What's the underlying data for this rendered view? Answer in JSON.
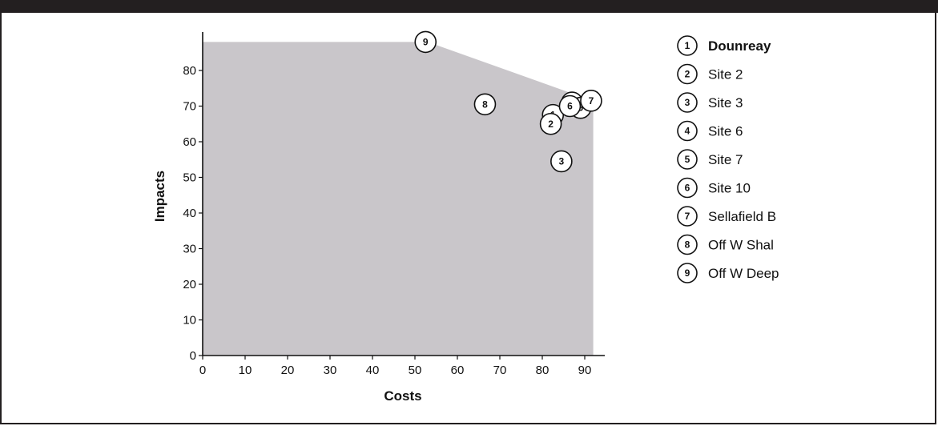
{
  "chart_data": {
    "type": "scatter",
    "xlabel": "Costs",
    "ylabel": "Impacts",
    "xlim": [
      0,
      95
    ],
    "ylim": [
      0,
      90
    ],
    "x_ticks": [
      "0",
      "10",
      "20",
      "30",
      "40",
      "50",
      "60",
      "70",
      "80",
      "90"
    ],
    "y_ticks": [
      "0",
      "10",
      "20",
      "30",
      "40",
      "50",
      "60",
      "70",
      "80"
    ],
    "grid": false,
    "legend_position": "right",
    "area_fill_color": "#c9c6ca",
    "feasible_region": [
      [
        0,
        0
      ],
      [
        0,
        88
      ],
      [
        53,
        88
      ],
      [
        86,
        74
      ],
      [
        92,
        72
      ],
      [
        92,
        0
      ]
    ],
    "points": [
      {
        "label": "1",
        "name": "Dounreay",
        "x": 82.5,
        "y": 67.5
      },
      {
        "label": "2",
        "name": "Site 2",
        "x": 82,
        "y": 65
      },
      {
        "label": "3",
        "name": "Site 3",
        "x": 84.5,
        "y": 54.5
      },
      {
        "label": "4",
        "name": "Site 6",
        "x": 87,
        "y": 71
      },
      {
        "label": "5",
        "name": "Site 7",
        "x": 89,
        "y": 69.5
      },
      {
        "label": "6",
        "name": "Site 10",
        "x": 86.5,
        "y": 70
      },
      {
        "label": "7",
        "name": "Sellafield B",
        "x": 91.5,
        "y": 71.5
      },
      {
        "label": "8",
        "name": "Off W Shal",
        "x": 66.5,
        "y": 70.5
      },
      {
        "label": "9",
        "name": "Off W Deep",
        "x": 52.5,
        "y": 88
      }
    ],
    "legend": [
      {
        "label": "1",
        "name": "Dounreay",
        "bold": true
      },
      {
        "label": "2",
        "name": "Site 2"
      },
      {
        "label": "3",
        "name": "Site 3"
      },
      {
        "label": "4",
        "name": "Site 6"
      },
      {
        "label": "5",
        "name": "Site 7"
      },
      {
        "label": "6",
        "name": "Site 10"
      },
      {
        "label": "7",
        "name": "Sellafield B"
      },
      {
        "label": "8",
        "name": "Off W Shal"
      },
      {
        "label": "9",
        "name": "Off W Deep"
      }
    ]
  }
}
